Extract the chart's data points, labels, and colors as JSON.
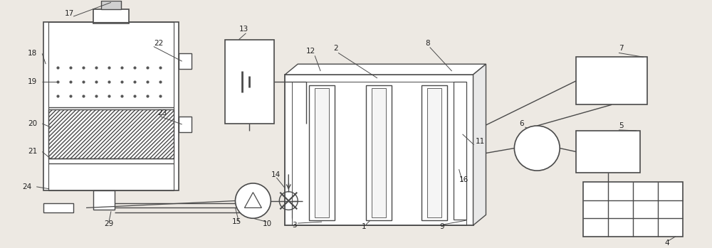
{
  "bg_color": "#ede9e3",
  "line_color": "#4a4a4a",
  "lw": 1.0,
  "fig_width": 10.0,
  "fig_height": 3.49
}
